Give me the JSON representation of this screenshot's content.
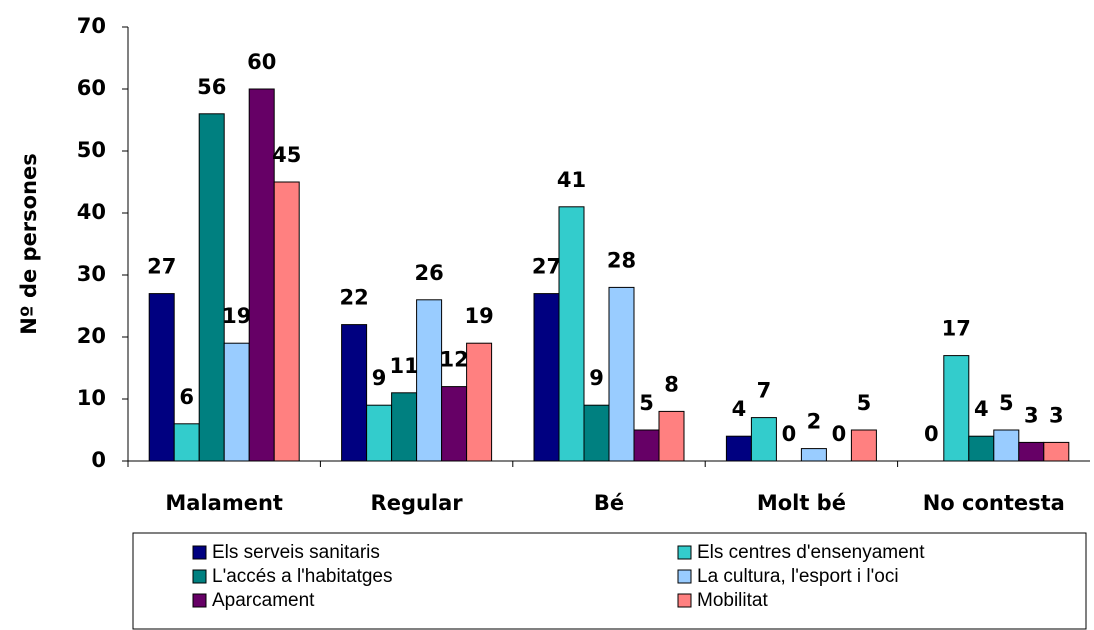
{
  "chart_data": {
    "type": "bar",
    "y_label": "Nº de persones",
    "categories": [
      "Malament",
      "Regular",
      "Bé",
      "Molt bé",
      "No contesta"
    ],
    "series": [
      {
        "name": "Els serveis sanitaris",
        "color": "#000080",
        "values": [
          27,
          22,
          27,
          4,
          0
        ]
      },
      {
        "name": "Els centres d'ensenyament",
        "color": "#33cccc",
        "values": [
          6,
          9,
          41,
          7,
          17
        ]
      },
      {
        "name": "L'accés a l'habitatges",
        "color": "#008080",
        "values": [
          56,
          11,
          9,
          0,
          4
        ]
      },
      {
        "name": "La cultura, l'esport i l'oci",
        "color": "#99ccff",
        "values": [
          19,
          26,
          28,
          2,
          5
        ]
      },
      {
        "name": "Aparcament",
        "color": "#660066",
        "values": [
          60,
          12,
          5,
          0,
          3
        ]
      },
      {
        "name": "Mobilitat",
        "color": "#ff8080",
        "values": [
          45,
          19,
          8,
          5,
          3
        ]
      }
    ],
    "ylim": [
      0,
      70
    ],
    "yticks": [
      0,
      10,
      20,
      30,
      40,
      50,
      60,
      70
    ],
    "legend": "bottom"
  }
}
